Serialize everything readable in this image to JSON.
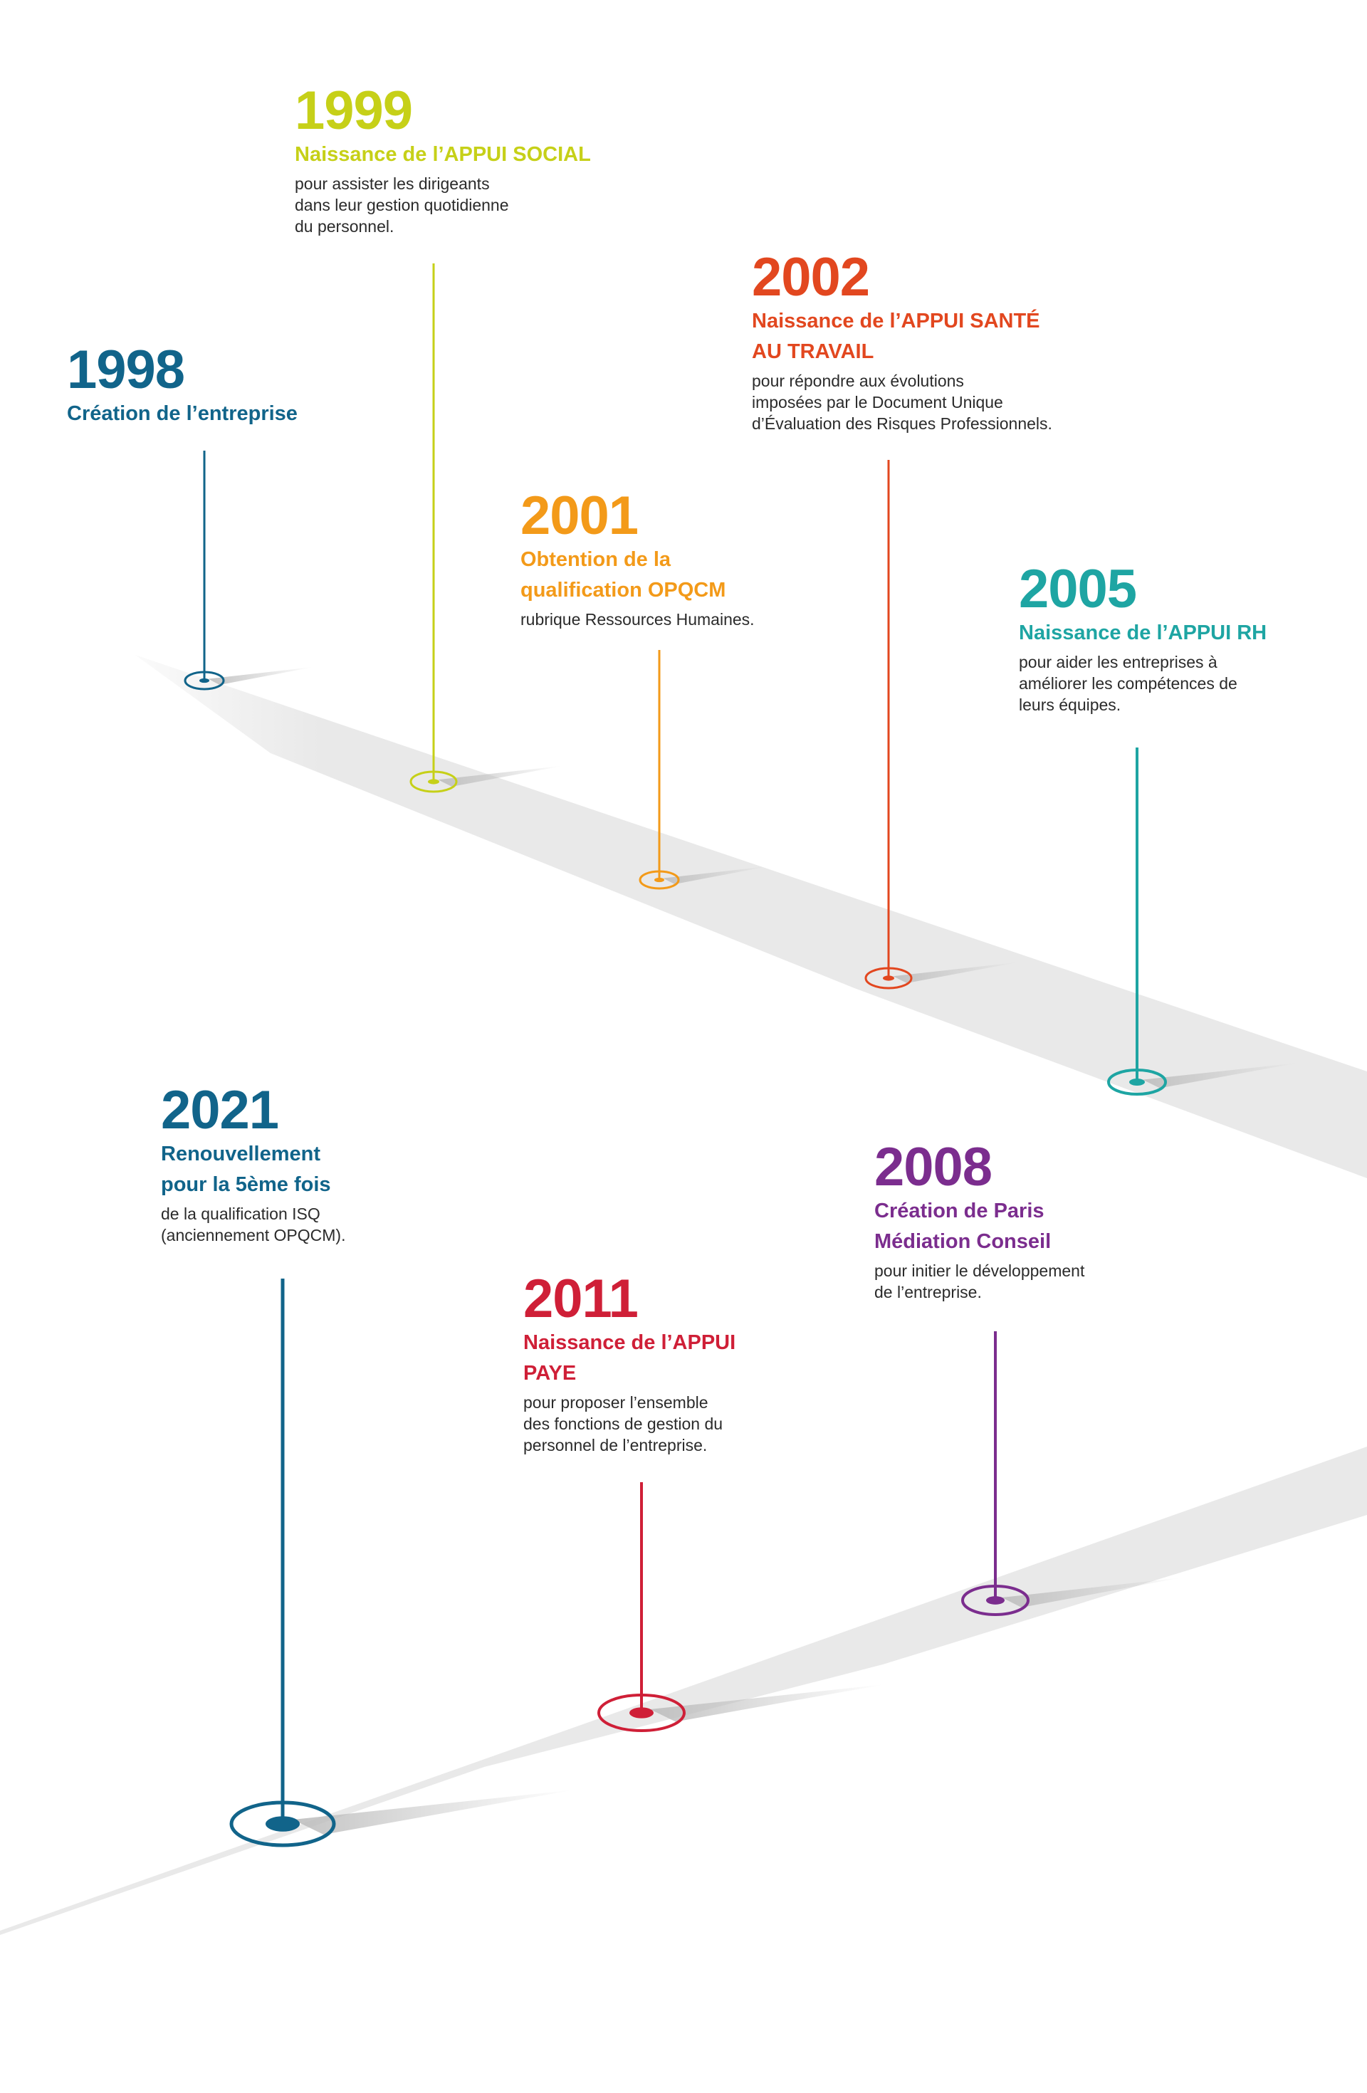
{
  "milestones": [
    {
      "id": "1998",
      "year": "1998",
      "heading_lines": [
        "Création de l’entreprise"
      ],
      "desc_lines": [],
      "color": "#11648a"
    },
    {
      "id": "1999",
      "year": "1999",
      "heading_lines": [
        "Naissance de l’APPUI SOCIAL"
      ],
      "desc_lines": [
        "pour assister les dirigeants",
        "dans leur gestion quotidienne",
        "du personnel."
      ],
      "color": "#c6d018"
    },
    {
      "id": "2001",
      "year": "2001",
      "heading_lines": [
        "Obtention de la",
        "qualification OPQCM"
      ],
      "desc_lines": [
        "rubrique Ressources Humaines."
      ],
      "color": "#f39a19"
    },
    {
      "id": "2002",
      "year": "2002",
      "heading_lines": [
        "Naissance de l’APPUI SANTÉ",
        "AU TRAVAIL"
      ],
      "desc_lines": [
        "pour répondre aux évolutions",
        "imposées par le Document Unique",
        "d’Évaluation des Risques Professionnels."
      ],
      "color": "#e2471f"
    },
    {
      "id": "2005",
      "year": "2005",
      "heading_lines": [
        "Naissance de l’APPUI RH"
      ],
      "desc_lines": [
        "pour aider les entreprises à",
        "améliorer les compétences de",
        "leurs équipes."
      ],
      "color": "#1ea5a3"
    },
    {
      "id": "2008",
      "year": "2008",
      "heading_lines": [
        "Création de Paris",
        "Médiation Conseil"
      ],
      "desc_lines": [
        "pour initier le développement",
        "de l’entreprise."
      ],
      "color": "#7b2d8e"
    },
    {
      "id": "2011",
      "year": "2011",
      "heading_lines": [
        "Naissance de l’APPUI",
        "PAYE"
      ],
      "desc_lines": [
        "pour proposer l’ensemble",
        "des fonctions de gestion du",
        "personnel de l’entreprise."
      ],
      "color": "#cf1f37"
    },
    {
      "id": "2021",
      "year": "2021",
      "heading_lines": [
        "Renouvellement",
        "pour la 5ème fois"
      ],
      "desc_lines": [
        "de la qualification ISQ",
        "(anciennement OPQCM)."
      ],
      "color": "#11648a"
    }
  ]
}
